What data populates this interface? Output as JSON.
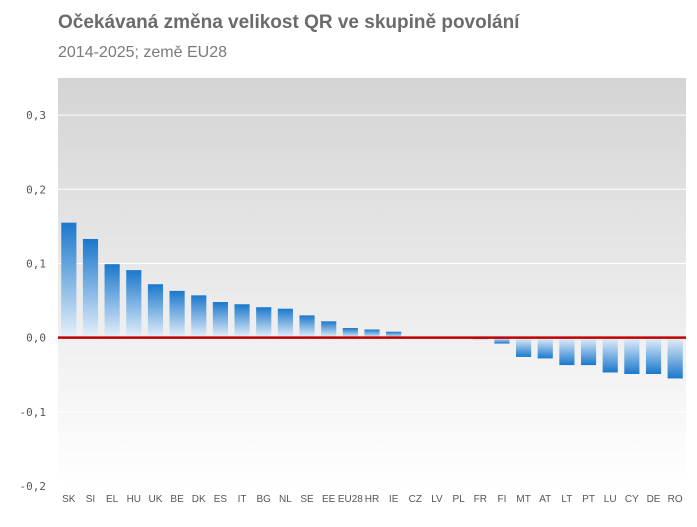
{
  "chart_data": {
    "type": "bar",
    "title": "Očekávaná změna velikost QR ve skupině povolání",
    "subtitle": "2014-2025; země EU28",
    "categories": [
      "SK",
      "SI",
      "EL",
      "HU",
      "UK",
      "BE",
      "DK",
      "ES",
      "IT",
      "BG",
      "NL",
      "SE",
      "EE",
      "EU28",
      "HR",
      "IE",
      "CZ",
      "LV",
      "PL",
      "FR",
      "FI",
      "MT",
      "AT",
      "LT",
      "PT",
      "LU",
      "CY",
      "DE",
      "RO"
    ],
    "values": [
      0.155,
      0.133,
      0.099,
      0.091,
      0.072,
      0.063,
      0.057,
      0.048,
      0.045,
      0.041,
      0.039,
      0.03,
      0.022,
      0.013,
      0.011,
      0.008,
      0.0,
      0.0,
      0.0,
      -0.002,
      -0.008,
      -0.026,
      -0.028,
      -0.037,
      -0.037,
      -0.047,
      -0.049,
      -0.049,
      -0.055
    ],
    "ylim": [
      -0.2,
      0.35
    ],
    "yticks": [
      -0.2,
      -0.1,
      0.0,
      0.1,
      0.2,
      0.3
    ],
    "ytick_labels": [
      "-0,2",
      "-0,1",
      "0,0",
      "0,1",
      "0,2",
      "0,3"
    ],
    "grid": true,
    "zero_line_color": "#c00000",
    "bar_color": "#1f7fd1"
  }
}
